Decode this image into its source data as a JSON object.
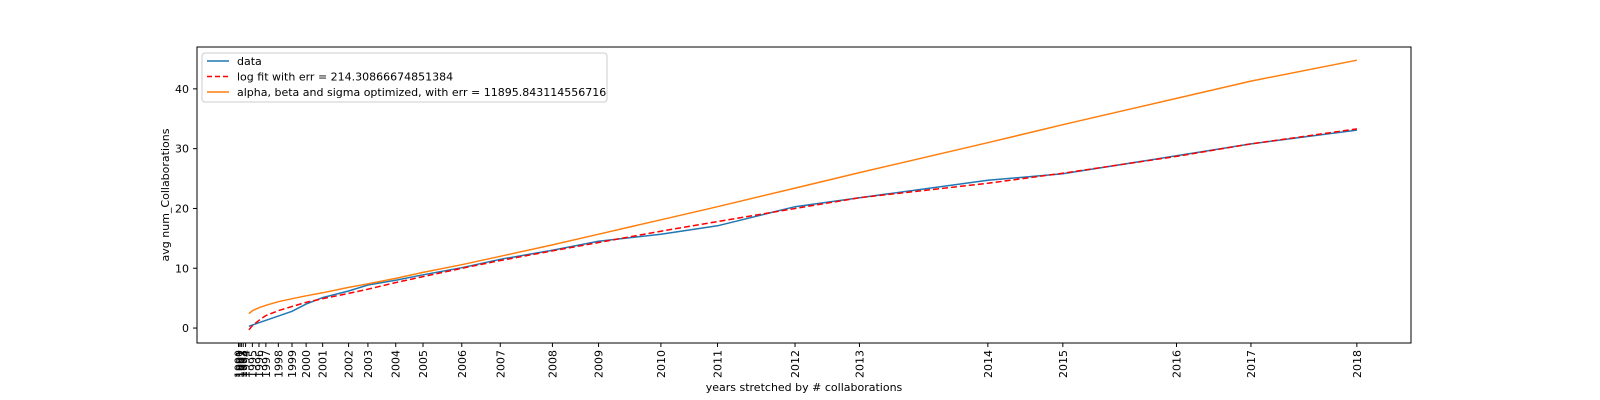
{
  "chart_data": {
    "type": "line",
    "title": "",
    "xlabel": "years stretched by # collaborations",
    "ylabel": "avg num_Collaborations",
    "grid": false,
    "legend_position": "top-left",
    "x_tick_labels": [
      "1990",
      "1991",
      "1992",
      "1993",
      "1994",
      "1995",
      "1996",
      "1997",
      "1998",
      "1999",
      "2000",
      "2001",
      "2002",
      "2003",
      "2004",
      "2005",
      "2006",
      "2007",
      "2008",
      "2009",
      "2010",
      "2011",
      "2012",
      "2013",
      "2014",
      "2015",
      "2016",
      "2017",
      "2018"
    ],
    "x_tick_values": [
      0.0,
      0.15,
      0.3,
      0.5,
      0.75,
      1.47,
      2.17,
      2.9,
      4.22,
      5.67,
      7.17,
      8.92,
      11.67,
      13.72,
      16.67,
      19.56,
      23.67,
      27.75,
      33.28,
      38.17,
      44.78,
      50.78,
      59.0,
      65.83,
      79.44,
      87.39,
      99.44,
      107.33,
      118.56
    ],
    "xlim": [
      -4.4,
      124.3
    ],
    "ylim": [
      -2.5,
      47
    ],
    "y_ticks": [
      0,
      10,
      20,
      30,
      40
    ],
    "series": [
      {
        "name": "data",
        "color": "#1f77b4",
        "style": "solid",
        "x": [
          1.1,
          2.17,
          4.22,
          5.67,
          7.17,
          8.92,
          11.67,
          13.72,
          16.67,
          19.56,
          23.67,
          27.75,
          33.28,
          38.17,
          44.78,
          50.78,
          59.0,
          65.83,
          79.44,
          87.39,
          99.44,
          107.33,
          118.56
        ],
        "y": [
          0.3,
          0.9,
          2.0,
          2.8,
          4.0,
          5.1,
          6.2,
          7.2,
          8.0,
          8.9,
          10.1,
          11.5,
          13.0,
          14.5,
          15.7,
          17.1,
          20.3,
          21.8,
          24.7,
          25.8,
          28.8,
          30.8,
          33.1
        ]
      },
      {
        "name": "log fit with err = 214.30866674851384",
        "color": "#ff0000",
        "style": "dashed",
        "x": [
          1.1,
          1.47,
          2.17,
          2.9,
          4.22,
          5.67,
          7.17,
          8.92,
          11.67,
          13.72,
          16.67,
          19.56,
          23.67,
          27.75,
          33.28,
          38.17,
          44.78,
          50.78,
          59.0,
          65.83,
          79.44,
          87.39,
          99.44,
          107.33,
          118.56
        ],
        "y": [
          -0.3,
          0.4,
          1.3,
          2.1,
          2.9,
          3.6,
          4.3,
          4.9,
          5.8,
          6.5,
          7.6,
          8.6,
          10.0,
          11.3,
          12.9,
          14.3,
          16.2,
          17.8,
          20.0,
          21.8,
          24.2,
          25.9,
          28.7,
          30.8,
          33.3
        ]
      },
      {
        "name": "alpha, beta and sigma optimized, with err = 11895.843114556716",
        "color": "#ff7f0e",
        "style": "solid",
        "x": [
          1.1,
          1.47,
          2.17,
          2.9,
          4.22,
          5.67,
          7.17,
          8.92,
          11.67,
          13.72,
          16.67,
          19.56,
          23.67,
          27.75,
          33.28,
          38.17,
          44.78,
          50.78,
          59.0,
          65.83,
          79.44,
          87.39,
          99.44,
          107.33,
          118.56
        ],
        "y": [
          2.4,
          2.9,
          3.4,
          3.8,
          4.4,
          4.9,
          5.4,
          5.9,
          6.8,
          7.4,
          8.3,
          9.3,
          10.6,
          12.0,
          13.9,
          15.7,
          18.1,
          20.3,
          23.4,
          26.0,
          31.0,
          34.0,
          38.4,
          41.3,
          44.8
        ]
      }
    ]
  }
}
